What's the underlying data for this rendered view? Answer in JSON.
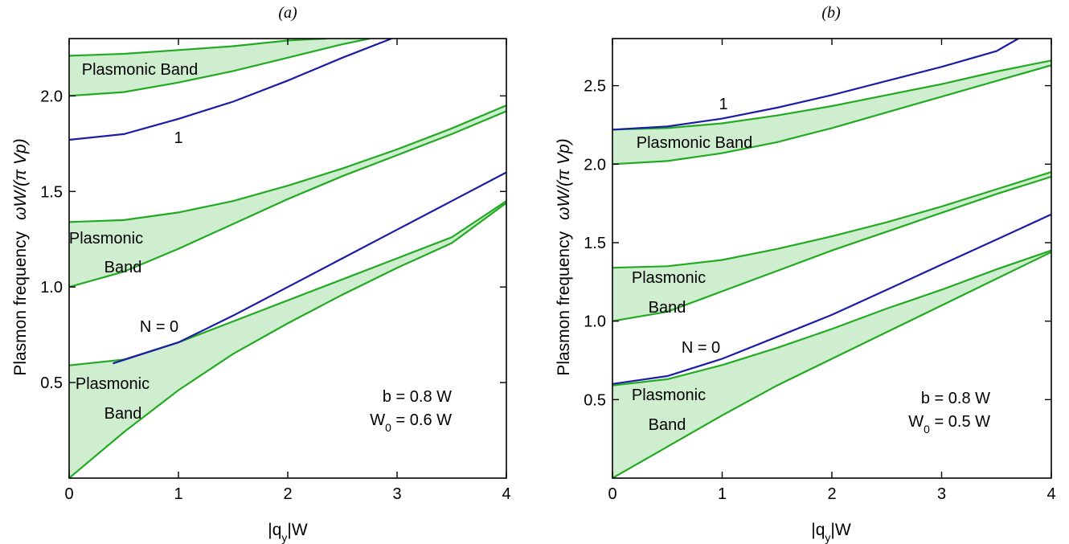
{
  "colors": {
    "band_fill": "#cfeecf",
    "band_edge": "#22aa22",
    "mode_line": "#1c1ca6",
    "axes": "#000000"
  },
  "chart_data": [
    {
      "type": "area",
      "panel_label": "(a)",
      "xlabel": {
        "base": "|q",
        "sub": "y",
        "tail": "|W"
      },
      "ylabel_text": "Plasmon frequency",
      "ylabel_math": "ωW/(π Vp)",
      "xlim": [
        0,
        4
      ],
      "ylim": [
        0,
        2.3
      ],
      "xticks": [
        "0",
        "1",
        "2",
        "3",
        "4"
      ],
      "xtick_values": [
        0,
        1,
        2,
        3,
        4
      ],
      "yticks": [
        "0.5",
        "1.0",
        "1.5",
        "2.0"
      ],
      "ytick_values": [
        0.5,
        1.0,
        1.5,
        2.0
      ],
      "grid": false,
      "bands": [
        {
          "label_lines": [
            "Plasmonic",
            "Band"
          ],
          "lower": {
            "x": [
              0,
              0.5,
              1,
              1.5,
              2,
              2.5,
              3,
              3.5,
              4
            ],
            "y": [
              0,
              0.24,
              0.46,
              0.65,
              0.81,
              0.96,
              1.1,
              1.23,
              1.44
            ]
          },
          "upper": {
            "x": [
              0,
              0.5,
              1,
              1.5,
              2,
              2.5,
              3,
              3.5,
              4
            ],
            "y": [
              0.59,
              0.62,
              0.71,
              0.82,
              0.93,
              1.04,
              1.15,
              1.26,
              1.45
            ]
          }
        },
        {
          "label_lines": [
            "Plasmonic",
            "Band"
          ],
          "lower": {
            "x": [
              0,
              0.5,
              1,
              1.5,
              2,
              2.5,
              3,
              3.5,
              4
            ],
            "y": [
              1.0,
              1.08,
              1.2,
              1.33,
              1.46,
              1.58,
              1.69,
              1.8,
              1.92
            ]
          },
          "upper": {
            "x": [
              0,
              0.5,
              1,
              1.5,
              2,
              2.5,
              3,
              3.5,
              4
            ],
            "y": [
              1.34,
              1.35,
              1.39,
              1.45,
              1.53,
              1.62,
              1.72,
              1.83,
              1.95
            ]
          }
        },
        {
          "label_lines": [
            "Plasmonic Band"
          ],
          "lower": {
            "x": [
              0,
              0.5,
              1,
              1.5,
              2,
              2.5,
              2.75
            ],
            "y": [
              2.0,
              2.02,
              2.07,
              2.13,
              2.2,
              2.27,
              2.3
            ]
          },
          "upper": {
            "x": [
              0,
              0.5,
              1,
              1.5,
              2,
              2.35
            ],
            "y": [
              2.21,
              2.22,
              2.24,
              2.26,
              2.29,
              2.3
            ]
          }
        }
      ],
      "modes": [
        {
          "label": "N = 0",
          "x": [
            0.4,
            1,
            1.5,
            2,
            2.5,
            3,
            3.5,
            4
          ],
          "y": [
            0.6,
            0.71,
            0.85,
            1.0,
            1.15,
            1.3,
            1.45,
            1.6
          ]
        },
        {
          "label": "1",
          "x": [
            0,
            0.5,
            1,
            1.5,
            2,
            2.5,
            2.95
          ],
          "y": [
            1.77,
            1.8,
            1.88,
            1.97,
            2.08,
            2.2,
            2.3
          ]
        }
      ],
      "annotations": [
        {
          "text": "b = 0.8 W"
        },
        {
          "base": "W",
          "sub": "0",
          "tail": " = 0.6 W"
        }
      ]
    },
    {
      "type": "area",
      "panel_label": "(b)",
      "xlabel": {
        "base": "|q",
        "sub": "y",
        "tail": "|W"
      },
      "ylabel_text": "Plasmon frequency",
      "ylabel_math": "ωW/(π Vp)",
      "xlim": [
        0,
        4
      ],
      "ylim": [
        0,
        2.8
      ],
      "xticks": [
        "0",
        "1",
        "2",
        "3",
        "4"
      ],
      "xtick_values": [
        0,
        1,
        2,
        3,
        4
      ],
      "yticks": [
        "0.5",
        "1.0",
        "1.5",
        "2.0",
        "2.5"
      ],
      "ytick_values": [
        0.5,
        1.0,
        1.5,
        2.0,
        2.5
      ],
      "grid": false,
      "bands": [
        {
          "label_lines": [
            "Plasmonic",
            "Band"
          ],
          "lower": {
            "x": [
              0,
              0.5,
              1,
              1.5,
              2,
              2.5,
              3,
              3.5,
              4
            ],
            "y": [
              0,
              0.2,
              0.4,
              0.59,
              0.76,
              0.93,
              1.1,
              1.27,
              1.44
            ]
          },
          "upper": {
            "x": [
              0,
              0.5,
              1,
              1.5,
              2,
              2.5,
              3,
              3.5,
              4
            ],
            "y": [
              0.59,
              0.63,
              0.72,
              0.83,
              0.95,
              1.08,
              1.2,
              1.33,
              1.45
            ]
          }
        },
        {
          "label_lines": [
            "Plasmonic",
            "Band"
          ],
          "lower": {
            "x": [
              0,
              0.5,
              1,
              1.5,
              2,
              2.5,
              3,
              3.5,
              4
            ],
            "y": [
              1.0,
              1.06,
              1.19,
              1.32,
              1.45,
              1.57,
              1.69,
              1.81,
              1.92
            ]
          },
          "upper": {
            "x": [
              0,
              0.5,
              1,
              1.5,
              2,
              2.5,
              3,
              3.5,
              4
            ],
            "y": [
              1.34,
              1.35,
              1.39,
              1.46,
              1.54,
              1.63,
              1.73,
              1.84,
              1.95
            ]
          }
        },
        {
          "label_lines": [
            "Plasmonic Band"
          ],
          "lower": {
            "x": [
              0,
              0.5,
              1,
              1.5,
              2,
              2.5,
              3,
              3.5,
              4
            ],
            "y": [
              2.0,
              2.02,
              2.07,
              2.14,
              2.23,
              2.33,
              2.43,
              2.53,
              2.63
            ]
          },
          "upper": {
            "x": [
              0,
              0.5,
              1,
              1.5,
              2,
              2.5,
              3,
              3.5,
              4
            ],
            "y": [
              2.22,
              2.23,
              2.26,
              2.31,
              2.37,
              2.44,
              2.51,
              2.59,
              2.66
            ]
          }
        }
      ],
      "modes": [
        {
          "label": "N = 0",
          "x": [
            0,
            0.5,
            1,
            1.5,
            2,
            2.5,
            3,
            3.5,
            4
          ],
          "y": [
            0.6,
            0.65,
            0.76,
            0.9,
            1.04,
            1.2,
            1.36,
            1.52,
            1.68
          ]
        },
        {
          "label": "1",
          "x": [
            0,
            0.5,
            1,
            1.5,
            2,
            2.5,
            3,
            3.5,
            3.7
          ],
          "y": [
            2.22,
            2.24,
            2.29,
            2.36,
            2.44,
            2.53,
            2.62,
            2.72,
            2.8
          ]
        }
      ],
      "annotations": [
        {
          "text": "b = 0.8 W"
        },
        {
          "base": "W",
          "sub": "0",
          "tail": " = 0.5 W"
        }
      ]
    }
  ]
}
